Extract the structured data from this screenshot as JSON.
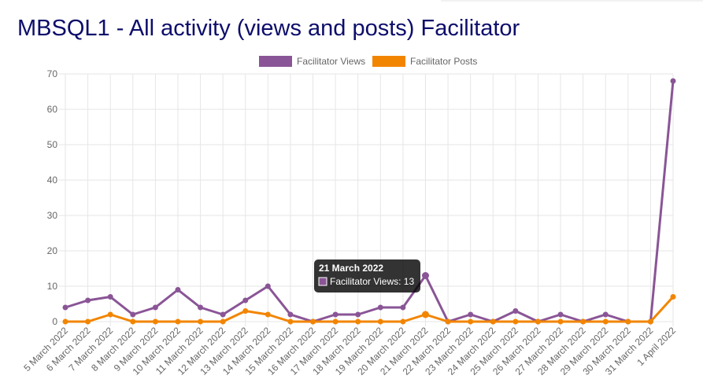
{
  "chart_data": {
    "type": "line",
    "title": "MBSQL1 - All activity (views and posts) Facilitator",
    "categories": [
      "5 March 2022",
      "6 March 2022",
      "7 March 2022",
      "8 March 2022",
      "9 March 2022",
      "10 March 2022",
      "11 March 2022",
      "12 March 2022",
      "13 March 2022",
      "14 March 2022",
      "15 March 2022",
      "16 March 2022",
      "17 March 2022",
      "18 March 2022",
      "19 March 2022",
      "20 March 2022",
      "21 March 2022",
      "22 March 2022",
      "23 March 2022",
      "24 March 2022",
      "25 March 2022",
      "26 March 2022",
      "27 March 2022",
      "28 March 2022",
      "29 March 2022",
      "30 March 2022",
      "31 March 2022",
      "1 April 2022"
    ],
    "series": [
      {
        "name": "Facilitator Views",
        "color": "#8a5596",
        "values": [
          4,
          6,
          7,
          2,
          4,
          9,
          4,
          2,
          6,
          10,
          2,
          0,
          2,
          2,
          4,
          4,
          13,
          0,
          2,
          0,
          3,
          0,
          2,
          0,
          2,
          0,
          0,
          68
        ]
      },
      {
        "name": "Facilitator Posts",
        "color": "#f28500",
        "values": [
          0,
          0,
          2,
          0,
          0,
          0,
          0,
          0,
          3,
          2,
          0,
          0,
          0,
          0,
          0,
          0,
          2,
          0,
          0,
          0,
          0,
          0,
          0,
          0,
          0,
          0,
          0,
          7
        ]
      }
    ],
    "ylim": [
      0,
      70
    ],
    "yticks": [
      0,
      10,
      20,
      30,
      40,
      50,
      60,
      70
    ],
    "grid": true,
    "legend": "top",
    "tooltip": {
      "title": "21 March 2022",
      "text": "Facilitator Views: 13"
    }
  }
}
